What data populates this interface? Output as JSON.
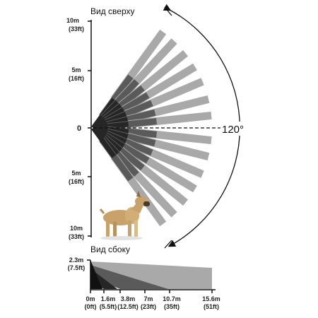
{
  "top_view": {
    "title": "Вид сверху",
    "angle_label": "120°",
    "zero_label": "0",
    "left_ticks": [
      {
        "m": "10m",
        "ft": "(33ft)"
      },
      {
        "m": "5m",
        "ft": "(16ft)"
      },
      {
        "m": "5m",
        "ft": "(16ft)"
      },
      {
        "m": "10m",
        "ft": "(33ft)"
      }
    ],
    "zone_angles_deg": [
      -54,
      -47,
      -39,
      -31,
      -23,
      -14,
      -6,
      6,
      14,
      23,
      31,
      39,
      47,
      54
    ],
    "colors": {
      "far": "#a9a9a9",
      "mid": "#5a5a5a",
      "near": "#262626",
      "axis": "#111111"
    }
  },
  "side_view": {
    "title": "Вид сбоку",
    "height_label": {
      "m": "2.3m",
      "ft": "(7.5ft)"
    },
    "distance_ticks": [
      {
        "m": "0m",
        "ft": "(0ft)"
      },
      {
        "m": "1.6m",
        "ft": "(5.5ft)"
      },
      {
        "m": "3.8m",
        "ft": "(12.5ft)"
      },
      {
        "m": "7m",
        "ft": "(23ft)"
      },
      {
        "m": "10.7m",
        "ft": "(35ft)"
      },
      {
        "m": "15.6m",
        "ft": "(51ft)"
      }
    ]
  }
}
